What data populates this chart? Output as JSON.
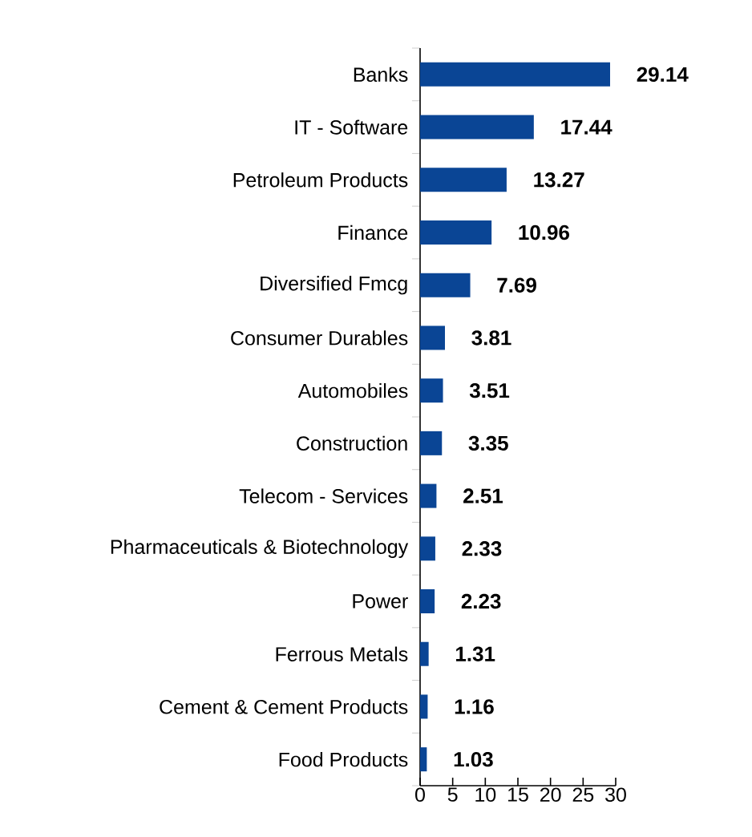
{
  "chart_data": {
    "type": "bar",
    "orientation": "horizontal",
    "categories": [
      "Banks",
      "IT - Software",
      "Petroleum Products",
      "Finance",
      "Diversified Fmcg",
      "Consumer Durables",
      "Automobiles",
      "Construction",
      "Telecom - Services",
      "Pharmaceuticals & Biotechnology",
      "Power",
      "Ferrous Metals",
      "Cement & Cement Products",
      "Food Products"
    ],
    "values": [
      29.14,
      17.44,
      13.27,
      10.96,
      7.69,
      3.81,
      3.51,
      3.35,
      2.51,
      2.33,
      2.23,
      1.31,
      1.16,
      1.03
    ],
    "color": "#0a4595",
    "xlim": [
      0,
      30
    ],
    "xticks": [
      0,
      5,
      10,
      15,
      20,
      25,
      30
    ],
    "data_labels": true
  }
}
